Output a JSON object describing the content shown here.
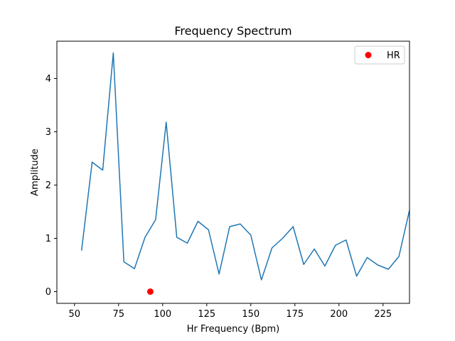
{
  "chart_data": {
    "type": "line",
    "title": "Frequency Spectrum",
    "xlabel": "Hr Frequency (Bpm)",
    "ylabel": "Amplitude",
    "xlim": [
      40,
      240
    ],
    "ylim": [
      -0.22,
      4.7
    ],
    "xticks": [
      50,
      75,
      100,
      125,
      150,
      175,
      200,
      225
    ],
    "yticks": [
      0,
      1,
      2,
      3,
      4
    ],
    "grid": false,
    "legend": {
      "placement": "top-right",
      "entries": [
        "HR"
      ]
    },
    "series": [
      {
        "kind": "line",
        "color": "#1f77b4",
        "x": [
          54,
          60,
          66,
          72,
          78,
          84,
          90,
          96,
          102,
          108,
          114,
          120,
          126,
          132,
          138,
          144,
          150,
          156,
          162,
          168,
          174,
          180,
          186,
          192,
          198,
          204,
          210,
          216,
          222,
          228,
          234,
          240
        ],
        "y": [
          0.77,
          2.43,
          2.28,
          4.48,
          0.56,
          0.43,
          1.02,
          1.35,
          3.18,
          1.02,
          0.91,
          1.32,
          1.16,
          0.33,
          1.22,
          1.27,
          1.06,
          0.22,
          0.82,
          1.0,
          1.22,
          0.51,
          0.8,
          0.48,
          0.87,
          0.97,
          0.29,
          0.64,
          0.5,
          0.42,
          0.66,
          1.53
        ]
      },
      {
        "kind": "scatter",
        "name": "HR",
        "color": "#ff0000",
        "x": [
          93
        ],
        "y": [
          0
        ]
      }
    ]
  }
}
